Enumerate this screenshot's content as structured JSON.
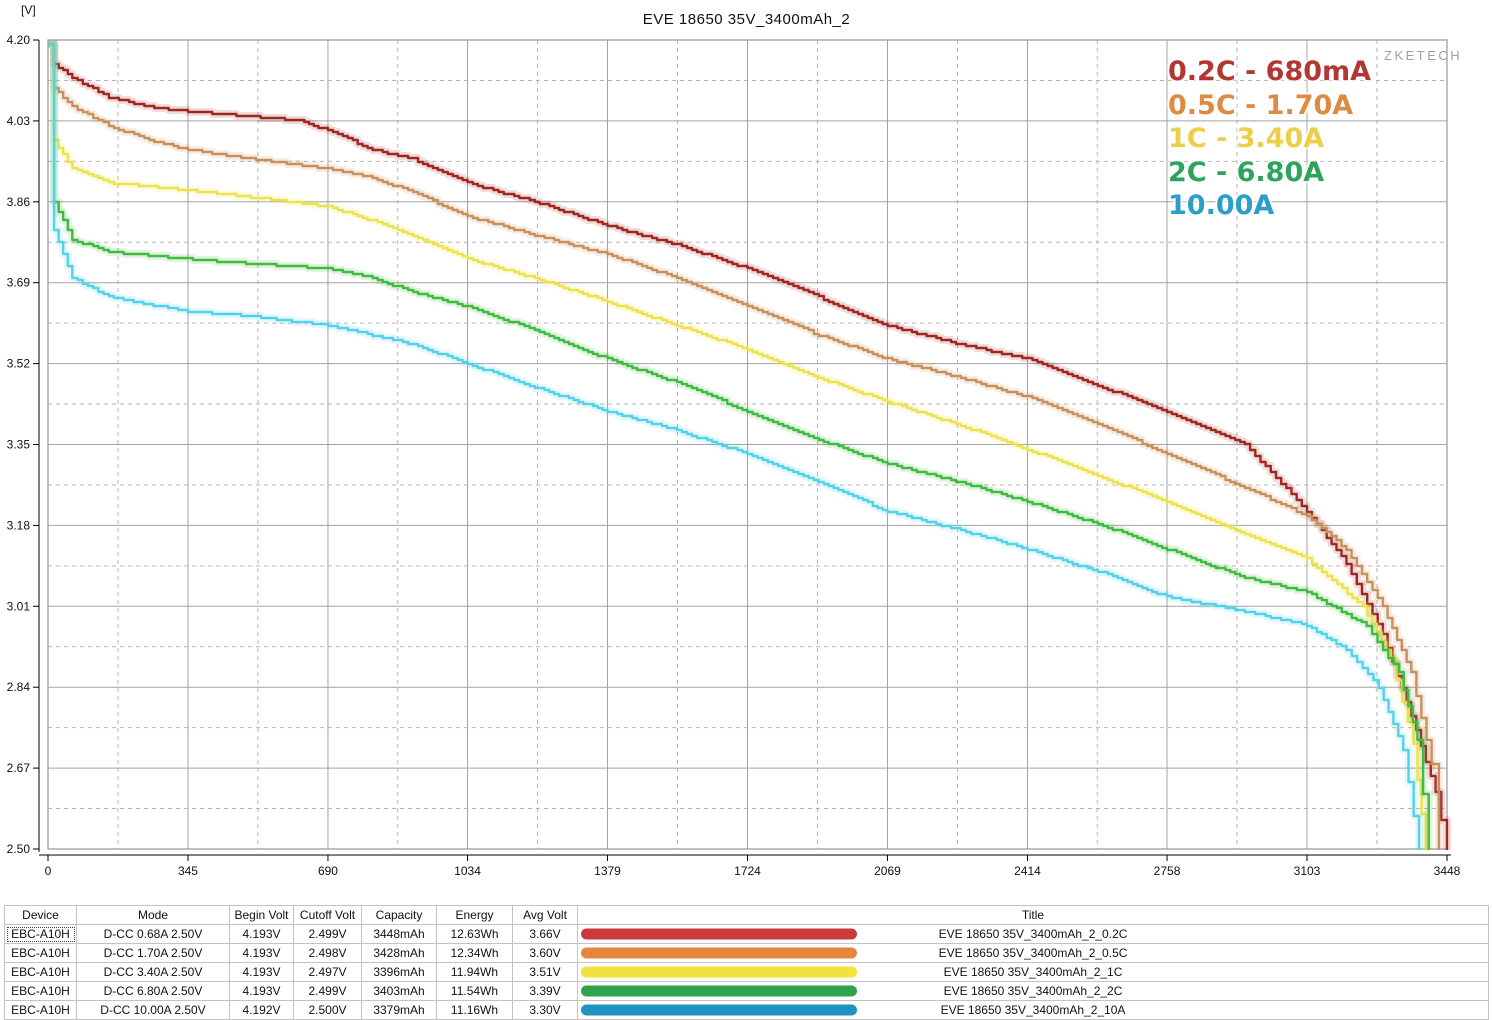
{
  "page": {
    "title": "EVE 18650 35V_3400mAh_2",
    "y_axis_unit": "[V]",
    "watermark": "ZKETECH"
  },
  "legend": {
    "position": "top-right-inside",
    "items": [
      {
        "label": "0.2C - 680mA",
        "color": "#b23733"
      },
      {
        "label": "0.5C - 1.70A",
        "color": "#dd8a42"
      },
      {
        "label": "1C - 3.40A",
        "color": "#eccf49"
      },
      {
        "label": "2C - 6.80A",
        "color": "#2ea35c"
      },
      {
        "label": "10.00A",
        "color": "#2d9ec9"
      }
    ]
  },
  "chart_data": {
    "type": "line",
    "title": "EVE 18650 35V_3400mAh_2",
    "xlabel": "",
    "ylabel": "[V]",
    "xlim": [
      0,
      3448
    ],
    "ylim": [
      2.5,
      4.2
    ],
    "x_ticks": [
      0,
      345,
      690,
      1034,
      1379,
      1724,
      2069,
      2414,
      2758,
      3103,
      3448
    ],
    "y_ticks": [
      "4.20",
      "4.03",
      "3.86",
      "3.69",
      "3.52",
      "3.35",
      "3.18",
      "3.01",
      "2.84",
      "2.67",
      "2.50"
    ],
    "grid": "solid gray at major ticks, dashed gray at midpoints",
    "legend_position": "top right inside plot",
    "series": [
      {
        "name": "0.2C - 680mA",
        "color": "#9e2722",
        "points": [
          [
            0,
            4.19
          ],
          [
            15,
            4.15
          ],
          [
            60,
            4.12
          ],
          [
            150,
            4.08
          ],
          [
            250,
            4.06
          ],
          [
            345,
            4.05
          ],
          [
            500,
            4.04
          ],
          [
            620,
            4.03
          ],
          [
            690,
            4.01
          ],
          [
            800,
            3.97
          ],
          [
            900,
            3.95
          ],
          [
            1034,
            3.9
          ],
          [
            1200,
            3.86
          ],
          [
            1379,
            3.81
          ],
          [
            1550,
            3.77
          ],
          [
            1724,
            3.72
          ],
          [
            1900,
            3.66
          ],
          [
            2069,
            3.6
          ],
          [
            2250,
            3.56
          ],
          [
            2414,
            3.53
          ],
          [
            2600,
            3.47
          ],
          [
            2758,
            3.42
          ],
          [
            2950,
            3.35
          ],
          [
            3103,
            3.21
          ],
          [
            3200,
            3.1
          ],
          [
            3290,
            2.95
          ],
          [
            3360,
            2.78
          ],
          [
            3420,
            2.62
          ],
          [
            3448,
            2.5
          ]
        ]
      },
      {
        "name": "0.5C - 1.70A",
        "color": "#c7915c",
        "points": [
          [
            0,
            4.19
          ],
          [
            15,
            4.1
          ],
          [
            60,
            4.06
          ],
          [
            150,
            4.02
          ],
          [
            250,
            3.99
          ],
          [
            345,
            3.97
          ],
          [
            500,
            3.95
          ],
          [
            690,
            3.93
          ],
          [
            800,
            3.91
          ],
          [
            900,
            3.88
          ],
          [
            1034,
            3.83
          ],
          [
            1200,
            3.79
          ],
          [
            1379,
            3.75
          ],
          [
            1550,
            3.7
          ],
          [
            1724,
            3.64
          ],
          [
            1900,
            3.58
          ],
          [
            2069,
            3.53
          ],
          [
            2250,
            3.49
          ],
          [
            2414,
            3.45
          ],
          [
            2600,
            3.39
          ],
          [
            2758,
            3.33
          ],
          [
            2950,
            3.26
          ],
          [
            3103,
            3.2
          ],
          [
            3200,
            3.13
          ],
          [
            3290,
            3.01
          ],
          [
            3360,
            2.87
          ],
          [
            3410,
            2.68
          ],
          [
            3428,
            2.5
          ]
        ]
      },
      {
        "name": "1C - 3.40A",
        "color": "#ece24e",
        "points": [
          [
            0,
            4.19
          ],
          [
            15,
            3.99
          ],
          [
            60,
            3.93
          ],
          [
            150,
            3.9
          ],
          [
            345,
            3.885
          ],
          [
            500,
            3.87
          ],
          [
            690,
            3.85
          ],
          [
            800,
            3.82
          ],
          [
            900,
            3.79
          ],
          [
            1034,
            3.74
          ],
          [
            1200,
            3.7
          ],
          [
            1379,
            3.65
          ],
          [
            1550,
            3.6
          ],
          [
            1724,
            3.55
          ],
          [
            1900,
            3.49
          ],
          [
            2069,
            3.44
          ],
          [
            2250,
            3.39
          ],
          [
            2414,
            3.34
          ],
          [
            2600,
            3.28
          ],
          [
            2758,
            3.23
          ],
          [
            2950,
            3.16
          ],
          [
            3103,
            3.11
          ],
          [
            3240,
            3.01
          ],
          [
            3310,
            2.9
          ],
          [
            3365,
            2.72
          ],
          [
            3396,
            2.5
          ]
        ]
      },
      {
        "name": "2C - 6.80A",
        "color": "#41ba41",
        "points": [
          [
            0,
            4.19
          ],
          [
            15,
            3.86
          ],
          [
            60,
            3.78
          ],
          [
            150,
            3.755
          ],
          [
            345,
            3.74
          ],
          [
            500,
            3.73
          ],
          [
            690,
            3.72
          ],
          [
            800,
            3.7
          ],
          [
            900,
            3.67
          ],
          [
            1034,
            3.64
          ],
          [
            1200,
            3.59
          ],
          [
            1379,
            3.53
          ],
          [
            1550,
            3.48
          ],
          [
            1724,
            3.42
          ],
          [
            1900,
            3.36
          ],
          [
            2069,
            3.31
          ],
          [
            2250,
            3.27
          ],
          [
            2414,
            3.23
          ],
          [
            2600,
            3.18
          ],
          [
            2758,
            3.13
          ],
          [
            2950,
            3.07
          ],
          [
            3103,
            3.04
          ],
          [
            3250,
            2.97
          ],
          [
            3330,
            2.87
          ],
          [
            3375,
            2.73
          ],
          [
            3403,
            2.5
          ]
        ]
      },
      {
        "name": "10.00A",
        "color": "#55d1e8",
        "points": [
          [
            0,
            4.19
          ],
          [
            15,
            3.8
          ],
          [
            60,
            3.7
          ],
          [
            150,
            3.66
          ],
          [
            345,
            3.63
          ],
          [
            500,
            3.62
          ],
          [
            690,
            3.6
          ],
          [
            800,
            3.58
          ],
          [
            900,
            3.56
          ],
          [
            1034,
            3.52
          ],
          [
            1200,
            3.47
          ],
          [
            1379,
            3.42
          ],
          [
            1550,
            3.38
          ],
          [
            1724,
            3.33
          ],
          [
            1900,
            3.27
          ],
          [
            2069,
            3.21
          ],
          [
            2250,
            3.17
          ],
          [
            2414,
            3.13
          ],
          [
            2600,
            3.08
          ],
          [
            2758,
            3.03
          ],
          [
            2950,
            3.0
          ],
          [
            3103,
            2.97
          ],
          [
            3200,
            2.92
          ],
          [
            3280,
            2.84
          ],
          [
            3340,
            2.71
          ],
          [
            3379,
            2.5
          ]
        ]
      }
    ]
  },
  "table": {
    "headers": [
      "Device",
      "Mode",
      "Begin Volt",
      "Cutoff Volt",
      "Capacity",
      "Energy",
      "Avg Volt",
      "Title"
    ],
    "rows": [
      {
        "device": "EBC-A10H",
        "mode": "D-CC 0.68A 2.50V",
        "begin_volt": "4.193V",
        "cutoff_volt": "2.499V",
        "capacity": "3448mAh",
        "energy": "12.63Wh",
        "avg_volt": "3.66V",
        "color": "#c93a3c",
        "title": "EVE 18650 35V_3400mAh_2_0.2C"
      },
      {
        "device": "EBC-A10H",
        "mode": "D-CC 1.70A 2.50V",
        "begin_volt": "4.193V",
        "cutoff_volt": "2.498V",
        "capacity": "3428mAh",
        "energy": "12.34Wh",
        "avg_volt": "3.60V",
        "color": "#e8853d",
        "title": "EVE 18650 35V_3400mAh_2_0.5C"
      },
      {
        "device": "EBC-A10H",
        "mode": "D-CC 3.40A 2.50V",
        "begin_volt": "4.193V",
        "cutoff_volt": "2.497V",
        "capacity": "3396mAh",
        "energy": "11.94Wh",
        "avg_volt": "3.51V",
        "color": "#f2e13e",
        "title": "EVE 18650 35V_3400mAh_2_1C"
      },
      {
        "device": "EBC-A10H",
        "mode": "D-CC 6.80A 2.50V",
        "begin_volt": "4.193V",
        "cutoff_volt": "2.499V",
        "capacity": "3403mAh",
        "energy": "11.54Wh",
        "avg_volt": "3.39V",
        "color": "#2fa44f",
        "title": "EVE 18650 35V_3400mAh_2_2C"
      },
      {
        "device": "EBC-A10H",
        "mode": "D-CC 10.00A 2.50V",
        "begin_volt": "4.192V",
        "cutoff_volt": "2.500V",
        "capacity": "3379mAh",
        "energy": "11.16Wh",
        "avg_volt": "3.30V",
        "color": "#2193c0",
        "title": "EVE 18650 35V_3400mAh_2_10A"
      }
    ]
  }
}
